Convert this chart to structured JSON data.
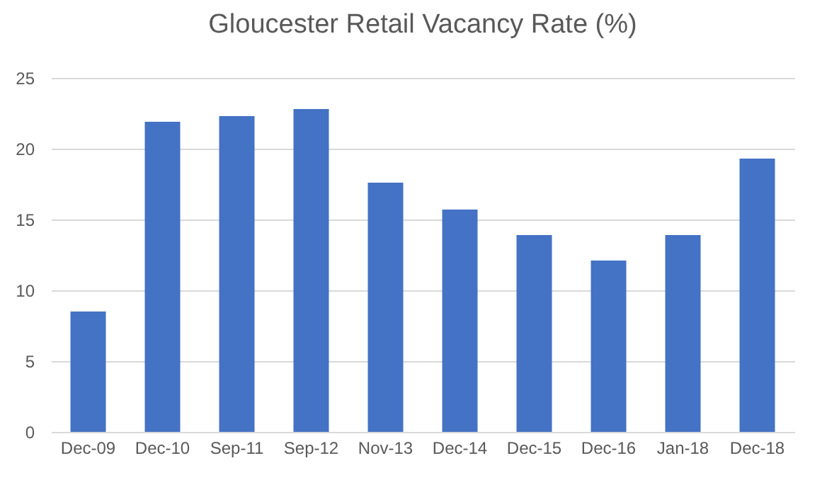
{
  "chart_data": {
    "type": "bar",
    "title": "Gloucester Retail Vacancy Rate (%)",
    "categories": [
      "Dec-09",
      "Dec-10",
      "Sep-11",
      "Sep-12",
      "Nov-13",
      "Dec-14",
      "Dec-15",
      "Dec-16",
      "Jan-18",
      "Dec-18"
    ],
    "values": [
      8.5,
      21.9,
      22.3,
      22.8,
      17.6,
      15.7,
      13.9,
      12.1,
      13.9,
      19.3
    ],
    "color": "#4472c4",
    "ylim": [
      0,
      25
    ],
    "yticks": [
      0,
      5,
      10,
      15,
      20,
      25
    ],
    "grid": "y"
  }
}
